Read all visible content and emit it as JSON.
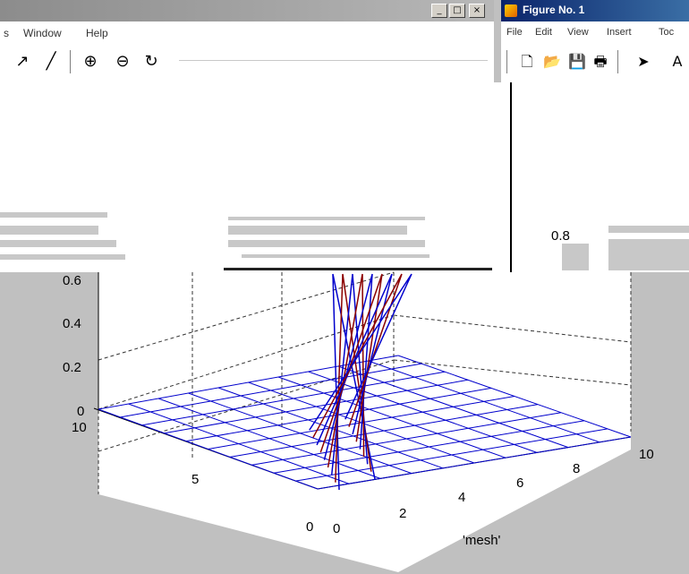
{
  "left_window": {
    "title_buttons": {
      "minimize": "_",
      "maximize": "□",
      "close": "×"
    },
    "menu": [
      {
        "label": "s"
      },
      {
        "label": "Window"
      },
      {
        "label": "Help"
      }
    ],
    "toolbar": [
      {
        "icon": "arrow-icon",
        "glyph": "↗"
      },
      {
        "icon": "line-icon",
        "glyph": "╱"
      },
      {
        "icon": "zoom-in-icon",
        "glyph": "⊕"
      },
      {
        "icon": "zoom-out-icon",
        "glyph": "⊖"
      },
      {
        "icon": "rotate-icon",
        "glyph": "↻"
      }
    ]
  },
  "right_window": {
    "title": "Figure No. 1",
    "menu": [
      {
        "label": "File"
      },
      {
        "label": "Edit"
      },
      {
        "label": "View"
      },
      {
        "label": "Insert"
      },
      {
        "label": "Toc"
      }
    ],
    "toolbar": [
      {
        "icon": "new-file-icon",
        "glyph": "🗋"
      },
      {
        "icon": "open-folder-icon",
        "glyph": "📂"
      },
      {
        "icon": "save-icon",
        "glyph": "💾"
      },
      {
        "icon": "print-icon",
        "glyph": "🖶"
      },
      {
        "icon": "pointer-icon",
        "glyph": "➤"
      },
      {
        "icon": "text-icon",
        "glyph": "A"
      }
    ],
    "partial_tick_label": "0.8"
  },
  "plot": {
    "z_ticks": [
      "0",
      "0.2",
      "0.4",
      "0.6"
    ],
    "y_ticks": [
      "0",
      "5",
      "10"
    ],
    "x_ticks": [
      "0",
      "2",
      "4",
      "6",
      "8",
      "10"
    ],
    "xlabel": "'mesh'",
    "mesh_color": "#0000cc",
    "spike_color": "#8b0000",
    "background": "#ffffff"
  }
}
